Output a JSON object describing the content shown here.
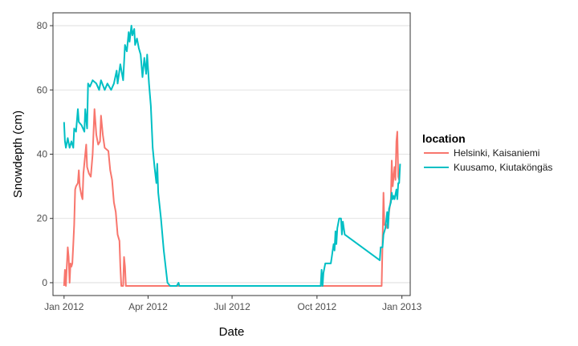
{
  "chart_data": {
    "type": "line",
    "xlabel": "Date",
    "ylabel": "Snowdepth (cm)",
    "xlim": [
      "2011-12-20",
      "2013-01-10"
    ],
    "ylim": [
      -4,
      84
    ],
    "x_ticks": [
      {
        "date": "2012-01-01",
        "label": "Jan 2012"
      },
      {
        "date": "2012-04-01",
        "label": "Apr 2012"
      },
      {
        "date": "2012-07-01",
        "label": "Jul 2012"
      },
      {
        "date": "2012-10-01",
        "label": "Oct 2012"
      },
      {
        "date": "2013-01-01",
        "label": "Jan 2013"
      }
    ],
    "y_ticks": [
      0,
      20,
      40,
      60,
      80
    ],
    "grid": "horizontal",
    "legend": {
      "title": "location",
      "position": "right"
    },
    "series": [
      {
        "name": "Helsinki, Kaisaniemi",
        "color": "#F8766D",
        "points": [
          [
            "2012-01-01",
            -1
          ],
          [
            "2012-01-02",
            4
          ],
          [
            "2012-01-03",
            -1
          ],
          [
            "2012-01-04",
            5
          ],
          [
            "2012-01-05",
            11
          ],
          [
            "2012-01-06",
            8
          ],
          [
            "2012-01-07",
            0
          ],
          [
            "2012-01-08",
            6
          ],
          [
            "2012-01-09",
            5
          ],
          [
            "2012-01-10",
            6
          ],
          [
            "2012-01-11",
            12
          ],
          [
            "2012-01-12",
            18
          ],
          [
            "2012-01-13",
            29
          ],
          [
            "2012-01-14",
            30
          ],
          [
            "2012-01-16",
            31
          ],
          [
            "2012-01-17",
            35
          ],
          [
            "2012-01-18",
            30
          ],
          [
            "2012-01-20",
            27
          ],
          [
            "2012-01-21",
            26
          ],
          [
            "2012-01-22",
            34
          ],
          [
            "2012-01-24",
            40
          ],
          [
            "2012-01-25",
            43
          ],
          [
            "2012-01-26",
            36
          ],
          [
            "2012-01-28",
            34
          ],
          [
            "2012-01-30",
            33
          ],
          [
            "2012-02-01",
            40
          ],
          [
            "2012-02-03",
            54
          ],
          [
            "2012-02-05",
            46
          ],
          [
            "2012-02-07",
            43
          ],
          [
            "2012-02-09",
            44
          ],
          [
            "2012-02-10",
            52
          ],
          [
            "2012-02-12",
            46
          ],
          [
            "2012-02-14",
            42
          ],
          [
            "2012-02-18",
            41
          ],
          [
            "2012-02-20",
            35
          ],
          [
            "2012-02-22",
            32
          ],
          [
            "2012-02-24",
            25
          ],
          [
            "2012-02-26",
            22
          ],
          [
            "2012-02-28",
            15
          ],
          [
            "2012-03-01",
            13
          ],
          [
            "2012-03-02",
            5
          ],
          [
            "2012-03-03",
            -1
          ],
          [
            "2012-03-05",
            -1
          ],
          [
            "2012-03-06",
            8
          ],
          [
            "2012-03-07",
            5
          ],
          [
            "2012-03-08",
            -1
          ],
          [
            "2012-04-01",
            -1
          ],
          [
            "2012-05-15",
            -1
          ],
          [
            "2012-09-30",
            -1
          ],
          [
            "2012-12-10",
            -1
          ],
          [
            "2012-12-11",
            12
          ],
          [
            "2012-12-12",
            28
          ],
          [
            "2012-12-13",
            18
          ],
          [
            "2012-12-15",
            18
          ],
          [
            "2012-12-16",
            17
          ],
          [
            "2012-12-18",
            22
          ],
          [
            "2012-12-20",
            26
          ],
          [
            "2012-12-21",
            38
          ],
          [
            "2012-12-22",
            30
          ],
          [
            "2012-12-24",
            36
          ],
          [
            "2012-12-25",
            32
          ],
          [
            "2012-12-26",
            44
          ],
          [
            "2012-12-27",
            47
          ],
          [
            "2012-12-28",
            33
          ],
          [
            "2012-12-29",
            32
          ]
        ]
      },
      {
        "name": "Kuusamo, Kiutaköngäs",
        "color": "#00BFC4",
        "points": [
          [
            "2012-01-01",
            50
          ],
          [
            "2012-01-02",
            44
          ],
          [
            "2012-01-03",
            42
          ],
          [
            "2012-01-05",
            45
          ],
          [
            "2012-01-07",
            42
          ],
          [
            "2012-01-09",
            44
          ],
          [
            "2012-01-11",
            42
          ],
          [
            "2012-01-12",
            48
          ],
          [
            "2012-01-14",
            47
          ],
          [
            "2012-01-16",
            54
          ],
          [
            "2012-01-17",
            50
          ],
          [
            "2012-01-20",
            49
          ],
          [
            "2012-01-23",
            47
          ],
          [
            "2012-01-24",
            54
          ],
          [
            "2012-01-26",
            48
          ],
          [
            "2012-01-27",
            62
          ],
          [
            "2012-01-29",
            61
          ],
          [
            "2012-02-01",
            63
          ],
          [
            "2012-02-05",
            62
          ],
          [
            "2012-02-08",
            60
          ],
          [
            "2012-02-10",
            63
          ],
          [
            "2012-02-14",
            60
          ],
          [
            "2012-02-17",
            62
          ],
          [
            "2012-02-21",
            60
          ],
          [
            "2012-02-24",
            62
          ],
          [
            "2012-02-27",
            66
          ],
          [
            "2012-02-28",
            62
          ],
          [
            "2012-03-02",
            68
          ],
          [
            "2012-03-05",
            63
          ],
          [
            "2012-03-07",
            74
          ],
          [
            "2012-03-09",
            72
          ],
          [
            "2012-03-11",
            78
          ],
          [
            "2012-03-12",
            75
          ],
          [
            "2012-03-14",
            80
          ],
          [
            "2012-03-15",
            77
          ],
          [
            "2012-03-17",
            79
          ],
          [
            "2012-03-18",
            74
          ],
          [
            "2012-03-20",
            76
          ],
          [
            "2012-03-22",
            73
          ],
          [
            "2012-03-24",
            71
          ],
          [
            "2012-03-26",
            64
          ],
          [
            "2012-03-28",
            70
          ],
          [
            "2012-03-30",
            65
          ],
          [
            "2012-03-31",
            71
          ],
          [
            "2012-04-02",
            62
          ],
          [
            "2012-04-04",
            55
          ],
          [
            "2012-04-06",
            42
          ],
          [
            "2012-04-08",
            36
          ],
          [
            "2012-04-10",
            31
          ],
          [
            "2012-04-11",
            37
          ],
          [
            "2012-04-12",
            28
          ],
          [
            "2012-04-15",
            20
          ],
          [
            "2012-04-18",
            10
          ],
          [
            "2012-04-20",
            5
          ],
          [
            "2012-04-22",
            0
          ],
          [
            "2012-04-25",
            -1
          ],
          [
            "2012-05-02",
            -1
          ],
          [
            "2012-05-04",
            0
          ],
          [
            "2012-05-05",
            -1
          ],
          [
            "2012-05-15",
            -1
          ],
          [
            "2012-09-30",
            -1
          ],
          [
            "2012-10-05",
            -1
          ],
          [
            "2012-10-06",
            4
          ],
          [
            "2012-10-07",
            -1
          ],
          [
            "2012-10-08",
            3
          ],
          [
            "2012-10-10",
            6
          ],
          [
            "2012-10-16",
            6
          ],
          [
            "2012-10-17",
            8
          ],
          [
            "2012-10-18",
            10
          ],
          [
            "2012-10-19",
            12
          ],
          [
            "2012-10-20",
            10
          ],
          [
            "2012-10-21",
            16
          ],
          [
            "2012-10-22",
            12
          ],
          [
            "2012-10-23",
            17
          ],
          [
            "2012-10-25",
            20
          ],
          [
            "2012-10-27",
            20
          ],
          [
            "2012-10-28",
            15
          ],
          [
            "2012-10-29",
            19
          ],
          [
            "2012-10-31",
            15
          ],
          [
            "2012-12-08",
            7
          ],
          [
            "2012-12-09",
            11
          ],
          [
            "2012-12-11",
            11
          ],
          [
            "2012-12-12",
            15
          ],
          [
            "2012-12-14",
            17
          ],
          [
            "2012-12-16",
            22
          ],
          [
            "2012-12-17",
            17
          ],
          [
            "2012-12-18",
            23
          ],
          [
            "2012-12-20",
            25
          ],
          [
            "2012-12-21",
            28
          ],
          [
            "2012-12-22",
            26
          ],
          [
            "2012-12-23",
            27
          ],
          [
            "2012-12-24",
            26
          ],
          [
            "2012-12-26",
            29
          ],
          [
            "2012-12-27",
            26
          ],
          [
            "2012-12-28",
            31
          ],
          [
            "2012-12-29",
            31
          ],
          [
            "2012-12-30",
            37
          ]
        ]
      }
    ]
  }
}
